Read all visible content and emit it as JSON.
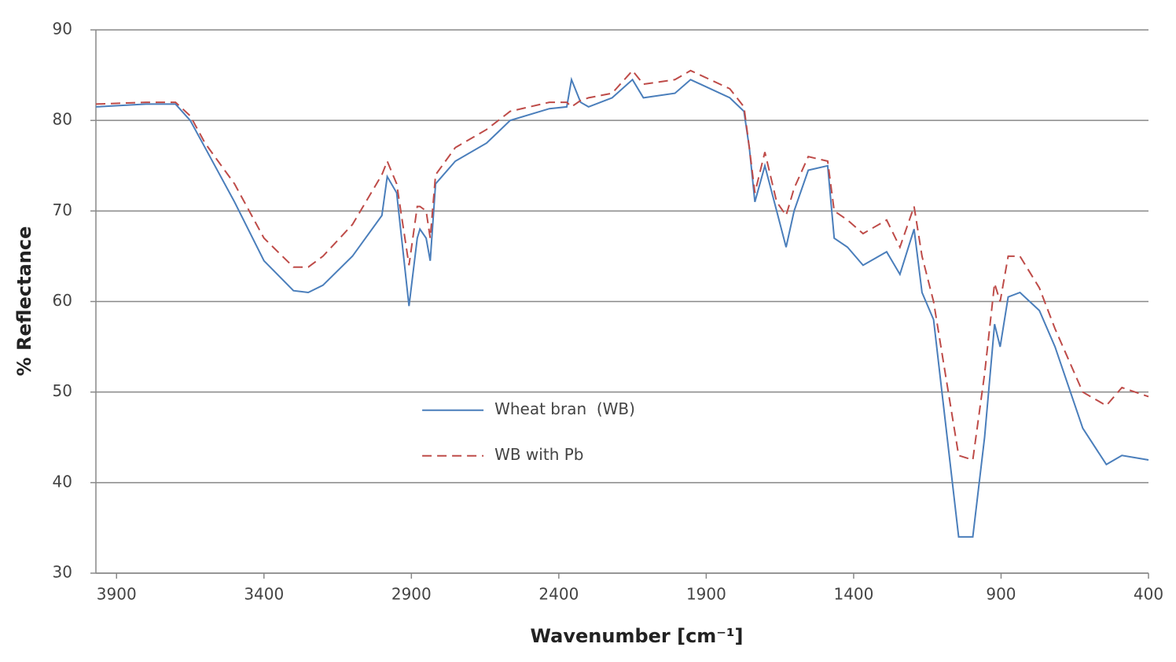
{
  "chart_data": {
    "type": "line",
    "xlabel": "Wavenumber  [cm⁻¹]",
    "ylabel": "% Reflectance",
    "x": [
      3970,
      3800,
      3700,
      3650,
      3600,
      3500,
      3400,
      3300,
      3250,
      3200,
      3100,
      3000,
      2982,
      2950,
      2908,
      2880,
      2871,
      2850,
      2836,
      2818,
      2751,
      2645,
      2565,
      2432,
      2373,
      2357,
      2326,
      2299,
      2219,
      2150,
      2113,
      2006,
      1953,
      1820,
      1772,
      1754,
      1735,
      1701,
      1661,
      1629,
      1602,
      1554,
      1488,
      1466,
      1421,
      1368,
      1288,
      1243,
      1195,
      1168,
      1129,
      1044,
      996,
      956,
      922,
      903,
      876,
      836,
      770,
      717,
      623,
      543,
      490,
      400
    ],
    "series": [
      {
        "name": "Wheat bran  (WB)",
        "color": "#4a7ebb",
        "dash": false,
        "values": [
          81.5,
          81.8,
          81.8,
          80,
          77,
          71,
          64.5,
          61.2,
          61,
          61.8,
          65,
          69.5,
          73.8,
          72,
          59.5,
          67,
          68,
          67,
          64.5,
          73,
          75.5,
          77.5,
          80,
          81.3,
          81.5,
          84.5,
          82,
          81.5,
          82.5,
          84.5,
          82.5,
          83,
          84.5,
          82.5,
          81,
          77,
          71,
          75,
          70,
          66,
          70,
          74.5,
          75,
          67,
          66,
          64,
          65.5,
          63,
          68,
          61,
          58,
          34,
          34,
          45,
          57.5,
          55,
          60.5,
          61,
          59,
          55,
          46,
          42,
          43,
          42.5
        ]
      },
      {
        "name": "WB with Pb",
        "color": "#be4b48",
        "dash": true,
        "values": [
          81.8,
          82,
          82,
          80.5,
          77.5,
          73,
          67,
          63.8,
          63.8,
          65,
          68.5,
          74,
          75.5,
          73,
          64,
          70.5,
          70.5,
          70,
          67,
          74,
          77,
          79,
          81,
          82,
          82,
          81.5,
          82.2,
          82.5,
          83,
          85.5,
          84,
          84.5,
          85.5,
          83.5,
          81.5,
          77,
          72,
          76.5,
          71,
          69.5,
          72.5,
          76,
          75.5,
          70,
          69,
          67.5,
          69,
          66,
          70.5,
          65,
          60,
          43,
          42.5,
          52,
          62,
          60,
          65,
          65,
          61.5,
          57,
          50,
          48.5,
          50.5,
          49.5
        ]
      }
    ],
    "xlim": [
      3970,
      400
    ],
    "xticks": [
      3900,
      3400,
      2900,
      2400,
      1900,
      1400,
      900,
      400
    ],
    "ylim": [
      30,
      90
    ],
    "yticks": [
      30,
      40,
      50,
      60,
      70,
      80,
      90
    ],
    "grid": true,
    "legend_position": "center"
  }
}
